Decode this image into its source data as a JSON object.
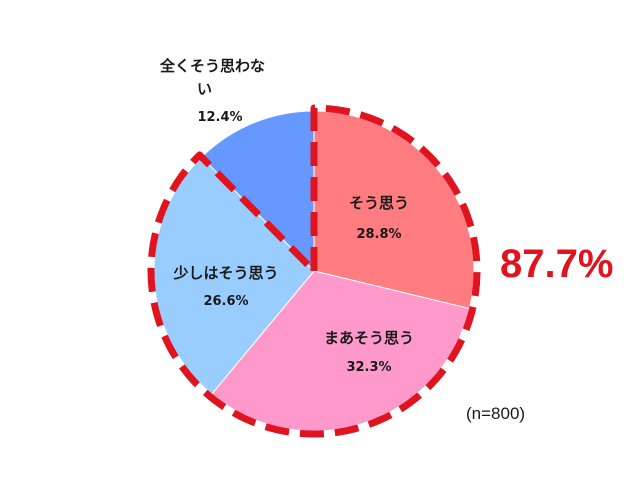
{
  "chart_data": {
    "type": "pie",
    "sample_size_label": "(n=800)",
    "highlight_total_label": "87.7%",
    "highlight_color": "#e0141e",
    "slices": [
      {
        "label": "そう思う",
        "value": 28.8,
        "value_label": "28.8%",
        "color": "#ff7c80"
      },
      {
        "label": "まあそう思う",
        "value": 32.3,
        "value_label": "32.3%",
        "color": "#ff99cc"
      },
      {
        "label": "少しはそう思う",
        "value": 26.6,
        "value_label": "26.6%",
        "color": "#99ccff"
      },
      {
        "label": "全くそう思わない",
        "value": 12.4,
        "value_label": "12.4%",
        "color": "#6699ff"
      }
    ],
    "highlighted_slices": [
      "そう思う",
      "まあそう思う",
      "少しはそう思う"
    ]
  }
}
